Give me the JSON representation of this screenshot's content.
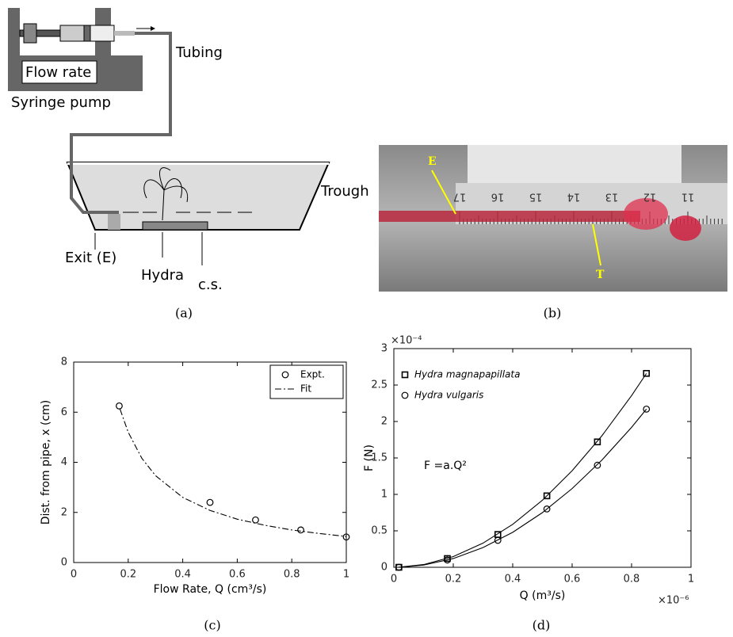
{
  "panel_a": {
    "caption": "(a)",
    "labels": {
      "flow_rate": "Flow rate",
      "syringe_pump": "Syringe pump",
      "tubing": "Tubing",
      "trough": "Trough",
      "exit": "Exit (E)",
      "hydra": "Hydra",
      "cs": "c.s."
    }
  },
  "panel_b": {
    "caption": "(b)",
    "marker_e": "E",
    "marker_t": "T",
    "ruler_labels": [
      "17",
      "16",
      "15",
      "14",
      "13",
      "12",
      "11"
    ]
  },
  "chart_data": [
    {
      "type": "scatter",
      "caption": "(c)",
      "xlabel": "Flow Rate, Q (cm³/s)",
      "ylabel": "Dist. from pipe, x (cm)",
      "xlim": [
        0,
        1
      ],
      "xticks": [
        0,
        0.2,
        0.4,
        0.6,
        0.8,
        1
      ],
      "ylim": [
        0,
        8
      ],
      "yticks": [
        0,
        2,
        4,
        6,
        8
      ],
      "legend": "upper right",
      "series": [
        {
          "name": "Expt.",
          "color": "#000000",
          "mode": "markers",
          "marker": "circle",
          "x": [
            0.167,
            0.5,
            0.667,
            0.833,
            1.0
          ],
          "values": [
            6.25,
            2.4,
            1.7,
            1.3,
            1.02
          ]
        },
        {
          "name": "Fit",
          "color": "#000000",
          "mode": "line",
          "dash": "dash-dot",
          "x": [
            0.17,
            0.2,
            0.25,
            0.3,
            0.4,
            0.5,
            0.6,
            0.7,
            0.8,
            0.9,
            1.0
          ],
          "values": [
            6.12,
            5.2,
            4.16,
            3.47,
            2.6,
            2.08,
            1.73,
            1.49,
            1.3,
            1.16,
            1.04
          ]
        }
      ]
    },
    {
      "type": "scatter",
      "caption": "(d)",
      "xlabel": "Q (m³/s)",
      "ylabel": "F (N)",
      "x_multiplier": "×10⁻⁶",
      "y_multiplier": "×10⁻⁴",
      "annotation": "F =a.Q²",
      "xlim": [
        0,
        1
      ],
      "xticks": [
        0,
        0.2,
        0.4,
        0.6,
        0.8,
        1
      ],
      "ylim": [
        0,
        3
      ],
      "yticks": [
        0,
        0.5,
        1,
        1.5,
        2,
        2.5,
        3
      ],
      "legend": "upper left",
      "series": [
        {
          "name": "Hydra magnapapillata",
          "color": "#000000",
          "mode": "markers",
          "marker": "square",
          "x": [
            0.017,
            0.18,
            0.35,
            0.515,
            0.685,
            0.85
          ],
          "values": [
            0,
            0.12,
            0.45,
            0.98,
            1.72,
            2.66
          ]
        },
        {
          "name": "Hydra vulgaris",
          "color": "#000000",
          "mode": "markers",
          "marker": "circle",
          "x": [
            0.017,
            0.18,
            0.35,
            0.515,
            0.685,
            0.85
          ],
          "values": [
            0,
            0.1,
            0.37,
            0.8,
            1.4,
            2.17
          ]
        },
        {
          "color": "#000000",
          "mode": "line",
          "x": [
            0.017,
            0.1,
            0.2,
            0.3,
            0.4,
            0.5,
            0.6,
            0.7,
            0.8,
            0.85
          ],
          "values": [
            0.001,
            0.037,
            0.147,
            0.331,
            0.589,
            0.92,
            1.325,
            1.803,
            2.355,
            2.659
          ]
        },
        {
          "color": "#000000",
          "mode": "line",
          "x": [
            0.017,
            0.1,
            0.2,
            0.3,
            0.4,
            0.5,
            0.6,
            0.7,
            0.8,
            0.85
          ],
          "values": [
            0.001,
            0.03,
            0.12,
            0.27,
            0.48,
            0.75,
            1.08,
            1.47,
            1.92,
            2.17
          ]
        }
      ]
    }
  ]
}
